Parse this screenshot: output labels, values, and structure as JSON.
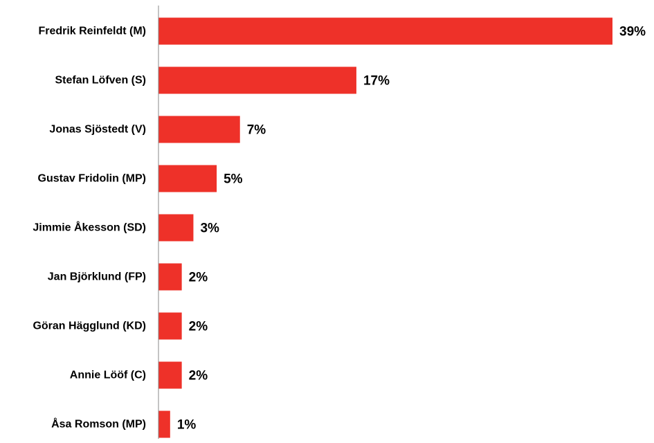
{
  "chart_data": {
    "type": "bar",
    "orientation": "horizontal",
    "categories": [
      "Fredrik Reinfeldt (M)",
      "Stefan Löfven (S)",
      "Jonas Sjöstedt (V)",
      "Gustav Fridolin (MP)",
      "Jimmie Åkesson (SD)",
      "Jan Björklund (FP)",
      "Göran Hägglund (KD)",
      "Annie Lööf (C)",
      "Åsa Romson (MP)"
    ],
    "values": [
      39,
      17,
      7,
      5,
      3,
      2,
      2,
      2,
      1
    ],
    "value_labels": [
      "39%",
      "17%",
      "7%",
      "5%",
      "3%",
      "2%",
      "2%",
      "2%",
      "1%"
    ],
    "title": "",
    "xlabel": "",
    "ylabel": "",
    "xlim": [
      0,
      39
    ],
    "grid": false,
    "legend": "none",
    "bar_color": "#ee3129",
    "axis_color": "#888888"
  }
}
